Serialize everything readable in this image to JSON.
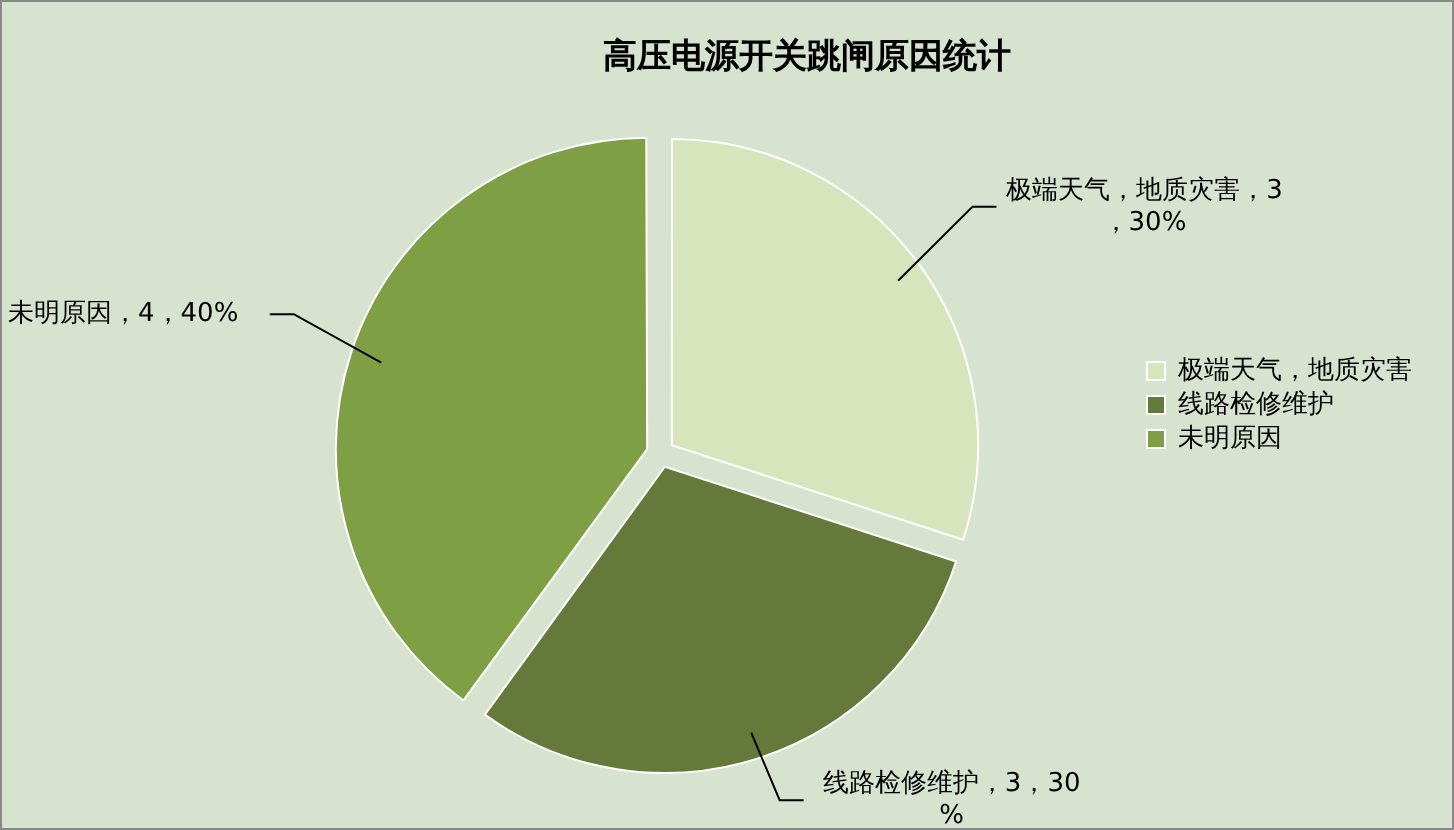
{
  "chart_data": {
    "type": "pie",
    "title": "高压电源开关跳闸原因统计",
    "categories": [
      "极端天气，地质灾害",
      "线路检修维护",
      "未明原因"
    ],
    "values": [
      3,
      3,
      4
    ],
    "colors": [
      "#d8e4bc",
      "#65793a",
      "#7f9f45"
    ],
    "value_labels": [
      "极端天气，地质灾害，3，30%",
      "线路检修维护，3，30%",
      "未明原因，4，40%"
    ],
    "legend": "right"
  }
}
